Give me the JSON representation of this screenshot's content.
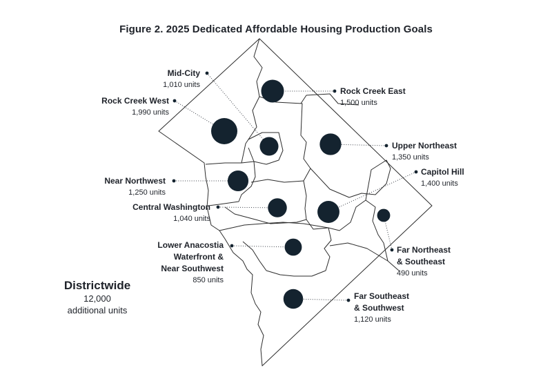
{
  "title": "Figure 2. 2025 Dedicated Affordable Housing Production Goals",
  "colors": {
    "bubble": "#14232f",
    "boundary": "#2b2b2b",
    "leader": "#3a3f47"
  },
  "districtwide": {
    "title": "Districtwide",
    "amount": "12,000",
    "note": "additional units"
  },
  "areas": [
    {
      "name": "Mid-City",
      "units_label": "1,010  units",
      "units": 1010
    },
    {
      "name": "Rock Creek West",
      "units_label": "1,990 units",
      "units": 1990
    },
    {
      "name": "Rock Creek East",
      "units_label": "1,500 units",
      "units": 1500
    },
    {
      "name": "Upper Northeast",
      "units_label": "1,350 units",
      "units": 1350
    },
    {
      "name": "Capitol Hill",
      "units_label": "1,400 units",
      "units": 1400
    },
    {
      "name": "Near Northwest",
      "units_label": "1,250 units",
      "units": 1250
    },
    {
      "name": "Central Washington",
      "units_label": "1,040 units",
      "units": 1040
    },
    {
      "name": "Lower Anacostia Waterfront & Near Southwest",
      "name_lines": [
        "Lower Anacostia",
        "Waterfront &",
        "Near Southwest"
      ],
      "units_label": "850 units",
      "units": 850
    },
    {
      "name": "Far Northeast & Southeast",
      "name_lines": [
        "Far Northeast",
        "& Southeast"
      ],
      "units_label": "490 units",
      "units": 490
    },
    {
      "name": "Far Southeast & Southwest",
      "name_lines": [
        "Far Southeast",
        "& Southwest"
      ],
      "units_label": "1,120 units",
      "units": 1120
    }
  ]
}
